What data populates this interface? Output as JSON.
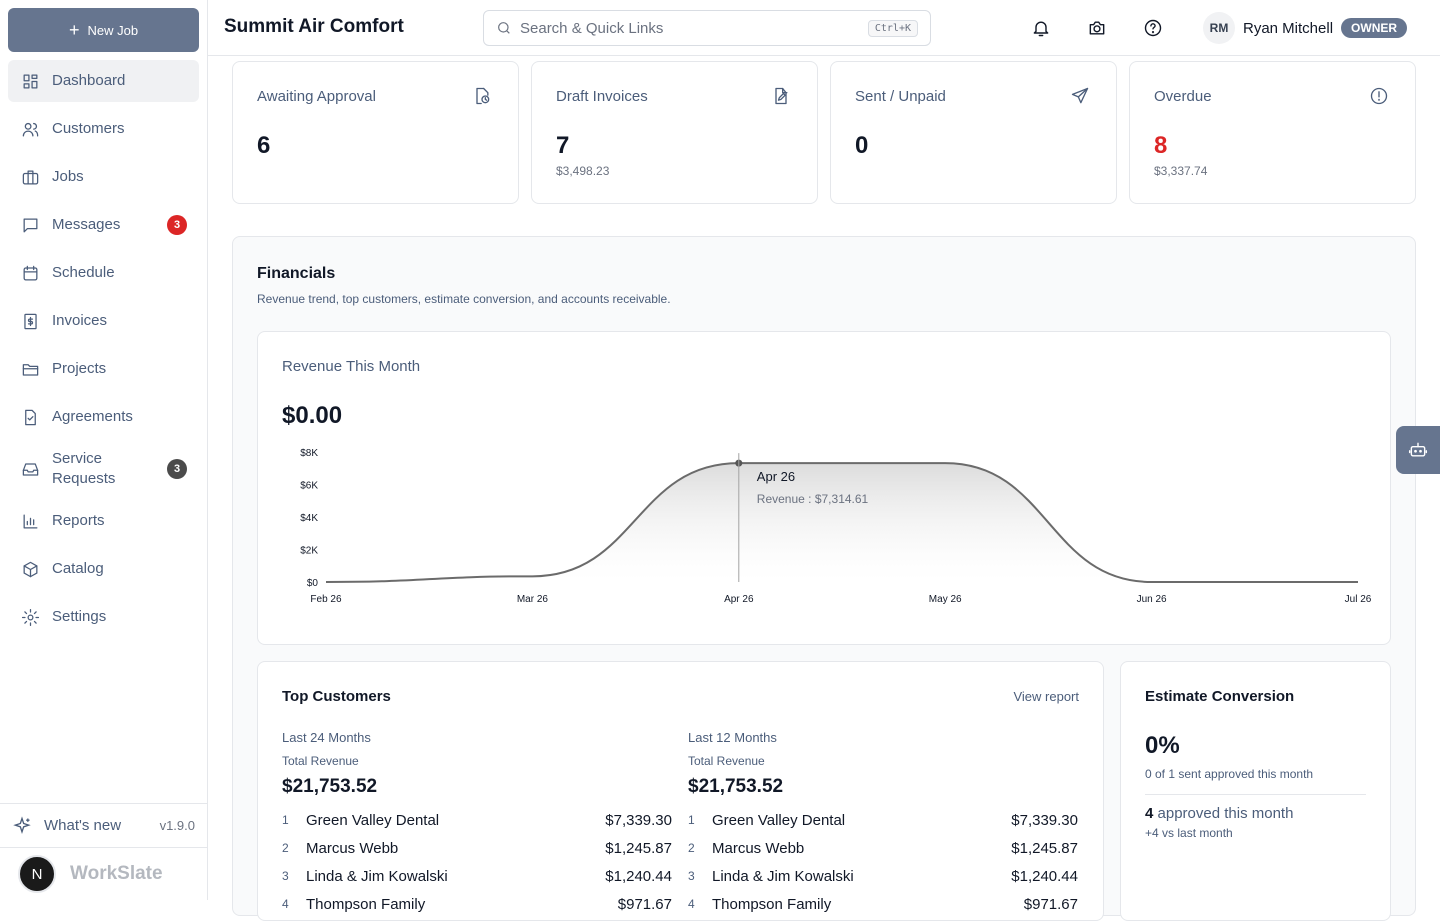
{
  "sidebar": {
    "new_job_label": "New Job",
    "items": [
      {
        "label": "Dashboard",
        "icon": "dashboard-icon",
        "active": true
      },
      {
        "label": "Customers",
        "icon": "users-icon"
      },
      {
        "label": "Jobs",
        "icon": "briefcase-icon"
      },
      {
        "label": "Messages",
        "icon": "message-icon",
        "badge": "3",
        "badge_color": "#dc2626"
      },
      {
        "label": "Schedule",
        "icon": "calendar-icon"
      },
      {
        "label": "Invoices",
        "icon": "invoice-icon"
      },
      {
        "label": "Projects",
        "icon": "folder-icon"
      },
      {
        "label": "Agreements",
        "icon": "agreement-icon"
      },
      {
        "label": "Service\nRequests",
        "icon": "inbox-icon",
        "badge": "3",
        "badge_color": "#4b4b4b"
      },
      {
        "label": "Reports",
        "icon": "bar-chart-icon"
      },
      {
        "label": "Catalog",
        "icon": "box-icon"
      },
      {
        "label": "Settings",
        "icon": "gear-icon"
      }
    ],
    "whats_new_label": "What's new",
    "version": "v1.9.0",
    "brand_initial": "N",
    "brand_name": "WorkSlate"
  },
  "header": {
    "title": "Summit Air Comfort",
    "search_placeholder": "Search & Quick Links",
    "search_shortcut": "Ctrl+K",
    "user_initials": "RM",
    "user_name": "Ryan Mitchell",
    "user_role": "OWNER"
  },
  "stats": [
    {
      "label": "Awaiting Approval",
      "value": "6",
      "sub": "",
      "icon": "clock-file-icon"
    },
    {
      "label": "Draft Invoices",
      "value": "7",
      "sub": "$3,498.23",
      "icon": "edit-file-icon"
    },
    {
      "label": "Sent / Unpaid",
      "value": "0",
      "sub": "",
      "icon": "send-icon"
    },
    {
      "label": "Overdue",
      "value": "8",
      "sub": "$3,337.74",
      "icon": "alert-circle-icon",
      "accent": "#dc2626"
    }
  ],
  "financials": {
    "title": "Financials",
    "subtitle": "Revenue trend, top customers, estimate conversion, and accounts receivable.",
    "revenue": {
      "title": "Revenue This Month",
      "total": "$0.00",
      "tooltip_date": "Apr 26",
      "tooltip_value": "Revenue : $7,314.61"
    },
    "top_customers": {
      "title": "Top Customers",
      "link": "View report",
      "total_revenue_label": "Total Revenue",
      "columns": [
        {
          "period": "Last 24 Months",
          "total": "$21,753.52",
          "rows": [
            {
              "rank": "1",
              "name": "Green Valley Dental",
              "amount": "$7,339.30"
            },
            {
              "rank": "2",
              "name": "Marcus Webb",
              "amount": "$1,245.87"
            },
            {
              "rank": "3",
              "name": "Linda & Jim Kowalski",
              "amount": "$1,240.44"
            },
            {
              "rank": "4",
              "name": "Thompson Family",
              "amount": "$971.67"
            }
          ]
        },
        {
          "period": "Last 12 Months",
          "total": "$21,753.52",
          "rows": [
            {
              "rank": "1",
              "name": "Green Valley Dental",
              "amount": "$7,339.30"
            },
            {
              "rank": "2",
              "name": "Marcus Webb",
              "amount": "$1,245.87"
            },
            {
              "rank": "3",
              "name": "Linda & Jim Kowalski",
              "amount": "$1,240.44"
            },
            {
              "rank": "4",
              "name": "Thompson Family",
              "amount": "$971.67"
            }
          ]
        }
      ]
    },
    "estimate_conversion": {
      "title": "Estimate Conversion",
      "percent": "0%",
      "sub": "0 of 1 sent approved this month",
      "approved_count": "4",
      "approved_label": "approved this month",
      "delta": "+4 vs last month"
    }
  },
  "chart_data": {
    "type": "area",
    "x": [
      "Feb 26",
      "Mar 26",
      "Apr 26",
      "May 26",
      "Jun 26",
      "Jul 26"
    ],
    "series": [
      {
        "name": "Revenue",
        "values": [
          0,
          350,
          7314.61,
          7314.61,
          0,
          0
        ]
      }
    ],
    "yticks": [
      "$0",
      "$2K",
      "$4K",
      "$6K",
      "$8K"
    ],
    "ylim": [
      0,
      8000
    ],
    "grid": false,
    "colors": {
      "line": "#6b6b6b",
      "fill_top": "#d8d8d8"
    }
  }
}
